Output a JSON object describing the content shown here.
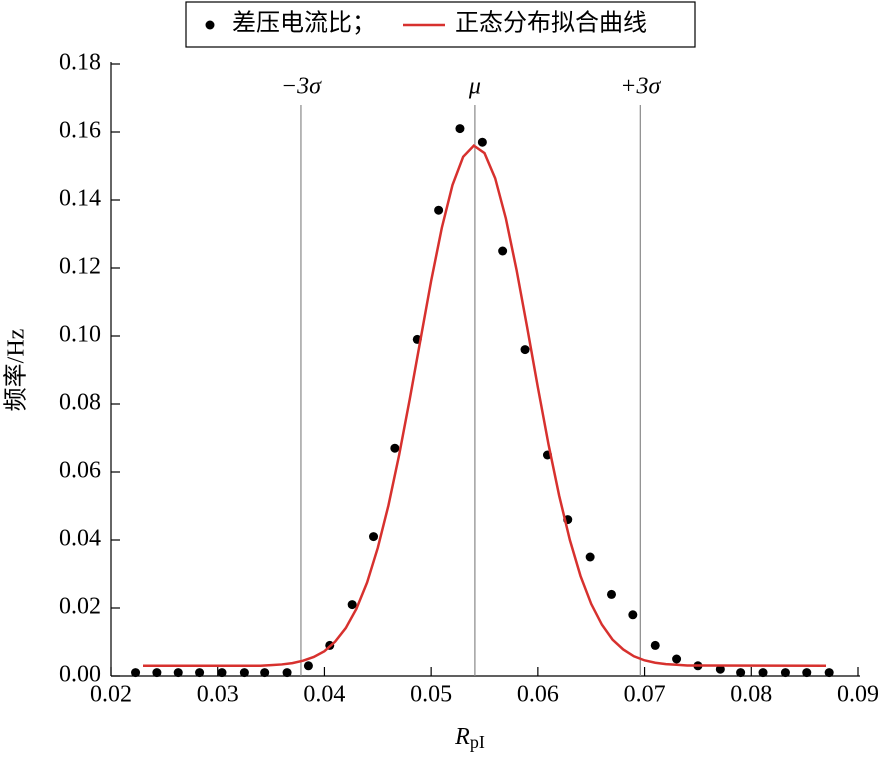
{
  "chart_data": {
    "type": "scatter",
    "ylabel": "频率/Hz",
    "xlabel": "R",
    "xlabel_sub": "pI",
    "xlim": [
      0.02,
      0.09
    ],
    "ylim": [
      0,
      0.18
    ],
    "xticks": [
      0.02,
      0.03,
      0.04,
      0.05,
      0.06,
      0.07,
      0.08,
      0.09
    ],
    "yticks": [
      {
        "value": 0,
        "label": "0.00"
      },
      0.02,
      0.04,
      0.06,
      0.08,
      {
        "value": 0.1,
        "label": "0.10"
      },
      0.12,
      0.14,
      0.16,
      0.18
    ],
    "reference_lines": [
      {
        "label": "−3σ",
        "x": 0.0378
      },
      {
        "label": "μ",
        "x": 0.0541
      },
      {
        "label": "+3σ",
        "x": 0.0696
      }
    ],
    "series": [
      {
        "name": "差压电流比；",
        "type": "scatter",
        "color": "#000000",
        "x": [
          0.0223,
          0.0243,
          0.0263,
          0.0283,
          0.0304,
          0.0325,
          0.0344,
          0.0365,
          0.0385,
          0.0405,
          0.0426,
          0.0446,
          0.0466,
          0.0487,
          0.0507,
          0.0527,
          0.0548,
          0.0567,
          0.0588,
          0.0609,
          0.0628,
          0.0649,
          0.0669,
          0.0689,
          0.071,
          0.073,
          0.075,
          0.0771,
          0.079,
          0.0811,
          0.0832,
          0.0852,
          0.0873
        ],
        "values": [
          0.001,
          0.001,
          0.001,
          0.001,
          0.001,
          0.001,
          0.001,
          0.001,
          0.003,
          0.009,
          0.021,
          0.041,
          0.067,
          0.099,
          0.137,
          0.161,
          0.157,
          0.125,
          0.096,
          0.065,
          0.046,
          0.035,
          0.024,
          0.018,
          0.009,
          0.005,
          0.003,
          0.002,
          0.001,
          0.001,
          0.001,
          0.001,
          0.001
        ]
      },
      {
        "name": "正态分布拟合曲线",
        "type": "line",
        "color": "#d7312e",
        "x": [
          0.023,
          0.034,
          0.035,
          0.036,
          0.037,
          0.038,
          0.039,
          0.04,
          0.041,
          0.042,
          0.043,
          0.044,
          0.045,
          0.046,
          0.047,
          0.048,
          0.049,
          0.05,
          0.051,
          0.052,
          0.053,
          0.054,
          0.055,
          0.056,
          0.057,
          0.058,
          0.059,
          0.06,
          0.061,
          0.062,
          0.063,
          0.064,
          0.065,
          0.066,
          0.067,
          0.068,
          0.069,
          0.07,
          0.071,
          0.072,
          0.073,
          0.074,
          0.075,
          0.087
        ],
        "values": [
          0.003,
          0.003,
          0.0032,
          0.0034,
          0.0038,
          0.0045,
          0.0056,
          0.0073,
          0.0101,
          0.0141,
          0.0198,
          0.0275,
          0.0377,
          0.0502,
          0.065,
          0.0815,
          0.0989,
          0.1162,
          0.1318,
          0.1444,
          0.1527,
          0.156,
          0.1538,
          0.1464,
          0.1346,
          0.1195,
          0.1025,
          0.0849,
          0.0681,
          0.053,
          0.04,
          0.0294,
          0.0212,
          0.0151,
          0.0107,
          0.0078,
          0.0058,
          0.0046,
          0.0039,
          0.0035,
          0.0033,
          0.0031,
          0.0031,
          0.003
        ]
      }
    ]
  }
}
